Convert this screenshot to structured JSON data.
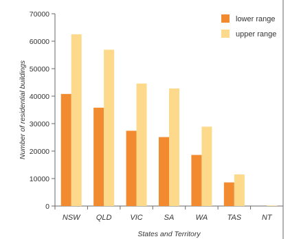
{
  "chart_data": {
    "type": "bar",
    "categories": [
      "NSW",
      "QLD",
      "VIC",
      "SA",
      "WA",
      "TAS",
      "NT"
    ],
    "series": [
      {
        "name": "lower range",
        "values": [
          40800,
          35800,
          27400,
          25100,
          18600,
          8600,
          0
        ],
        "color": "#f28a30"
      },
      {
        "name": "upper range",
        "values": [
          62500,
          56900,
          44600,
          42800,
          28900,
          11500,
          200
        ],
        "color": "#fcd98b"
      }
    ],
    "xlabel": "States and Territory",
    "ylabel": "Number of residential buildings",
    "ylim": [
      0,
      70000
    ],
    "yticks": [
      "0",
      "10000",
      "20000",
      "30000",
      "40000",
      "50000",
      "60000",
      "70000"
    ],
    "legend_position": "top-right",
    "grid": false
  }
}
